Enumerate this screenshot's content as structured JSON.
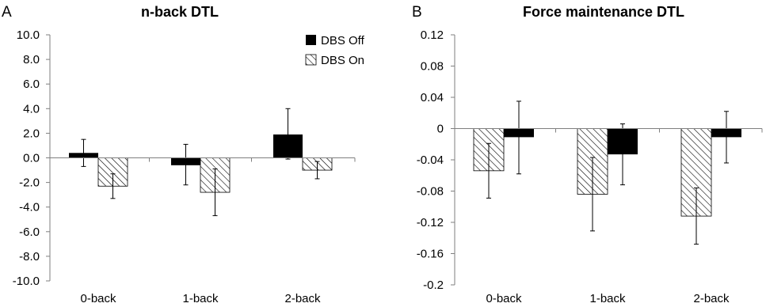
{
  "colors": {
    "dbs_off": "#000000",
    "dbs_on_hatch": "#000000",
    "axis": "#7f7f7f"
  },
  "legend": {
    "off_label": "DBS Off",
    "on_label": "DBS On"
  },
  "chart_data": [
    {
      "panel": "A",
      "type": "bar",
      "title": "n-back DTL",
      "categories": [
        "0-back",
        "1-back",
        "2-back"
      ],
      "ylim": [
        -10.0,
        10.0
      ],
      "yticks": [
        10.0,
        8.0,
        6.0,
        4.0,
        2.0,
        0.0,
        -2.0,
        -4.0,
        -6.0,
        -8.0,
        -10.0
      ],
      "ytick_labels": [
        "10.0",
        "8.0",
        "6.0",
        "4.0",
        "2.0",
        "0.0",
        "-2.0",
        "-4.0",
        "-6.0",
        "-8.0",
        "-10.0"
      ],
      "series": [
        {
          "name": "DBS Off",
          "fill": "solid",
          "values": [
            0.4,
            -0.6,
            1.9
          ],
          "err_low": [
            -0.7,
            -2.2,
            -0.1
          ],
          "err_high": [
            1.5,
            1.1,
            4.0
          ]
        },
        {
          "name": "DBS On",
          "fill": "hatch",
          "values": [
            -2.3,
            -2.8,
            -1.0
          ],
          "err_low": [
            -3.3,
            -4.7,
            -1.7
          ],
          "err_high": [
            -1.3,
            -0.9,
            -0.3
          ]
        }
      ],
      "legend_position": "top-right",
      "grid": false
    },
    {
      "panel": "B",
      "type": "bar",
      "title": "Force maintenance DTL",
      "categories": [
        "0-back",
        "1-back",
        "2-back"
      ],
      "ylim": [
        -0.2,
        0.12
      ],
      "yticks": [
        0.12,
        0.08,
        0.04,
        0,
        -0.04,
        -0.08,
        -0.12,
        -0.16,
        -0.2
      ],
      "ytick_labels": [
        "0.12",
        "0.08",
        "0.04",
        "0",
        "-0.04",
        "-0.08",
        "-0.12",
        "-0.16",
        "-0.2"
      ],
      "series": [
        {
          "name": "DBS On",
          "fill": "hatch",
          "values": [
            -0.054,
            -0.084,
            -0.112
          ],
          "err_low": [
            -0.089,
            -0.131,
            -0.148
          ],
          "err_high": [
            -0.019,
            -0.037,
            -0.076
          ]
        },
        {
          "name": "DBS Off",
          "fill": "solid",
          "values": [
            -0.011,
            -0.033,
            -0.011
          ],
          "err_low": [
            -0.058,
            -0.072,
            -0.044
          ],
          "err_high": [
            0.035,
            0.006,
            0.022
          ]
        }
      ],
      "legend_position": "none",
      "grid": false
    }
  ]
}
